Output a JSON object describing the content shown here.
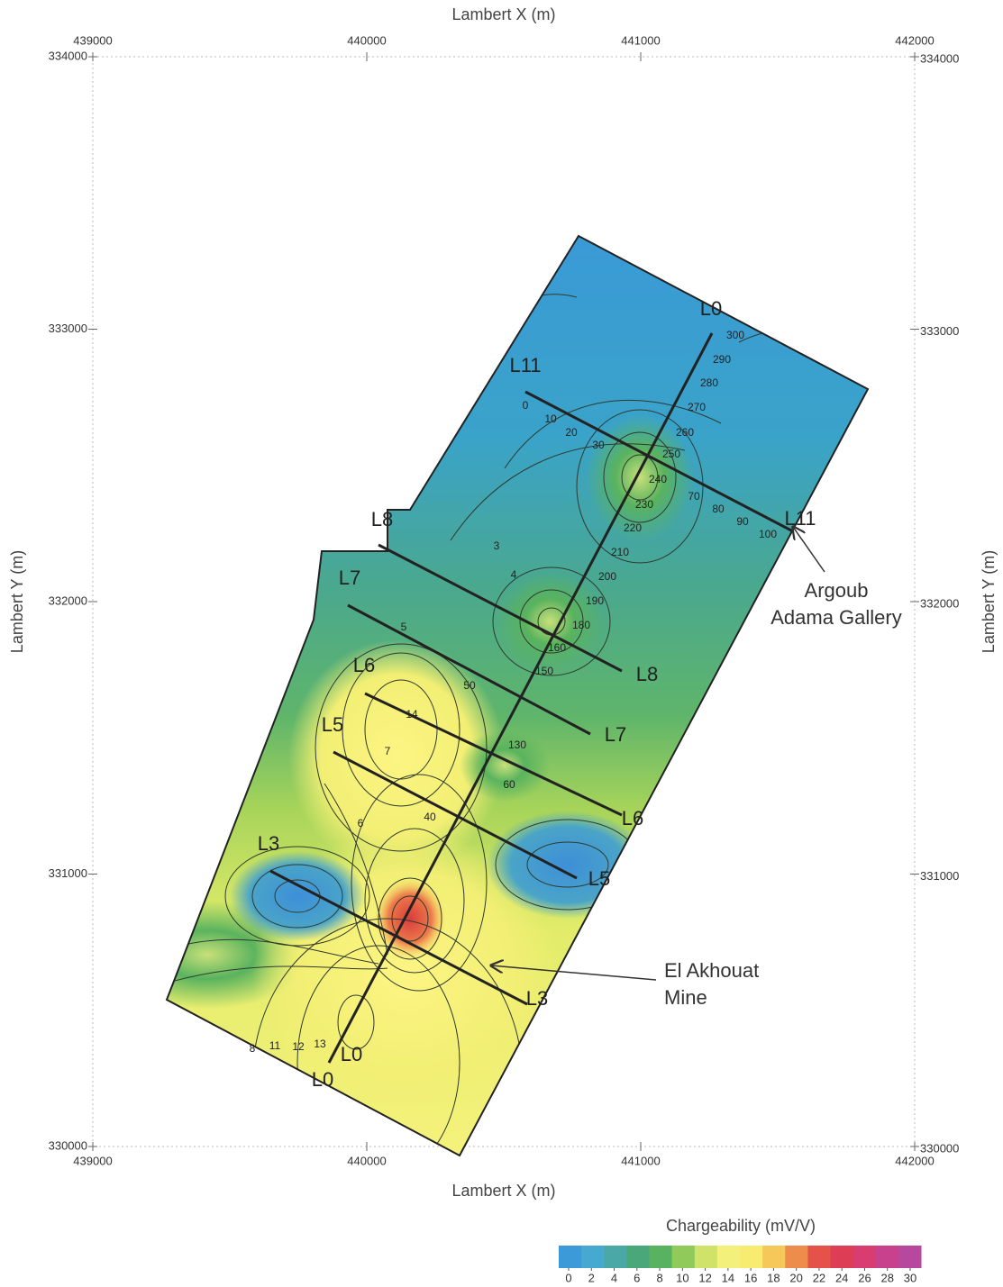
{
  "map": {
    "x_axis_label": "Lambert X (m)",
    "y_axis_label": "Lambert Y (m)",
    "xlim": [
      439000,
      442000
    ],
    "xticks": [
      439000,
      440000,
      441000,
      442000
    ],
    "ylim": [
      330000,
      334000
    ],
    "yticks": [
      330000,
      331000,
      332000,
      333000,
      334000
    ],
    "profiles": [
      "L0",
      "L11",
      "L8",
      "L7",
      "L6",
      "L5",
      "L3"
    ],
    "annotations": [
      {
        "lines": [
          "Argoub",
          "Adama Gallery"
        ]
      },
      {
        "lines": [
          "El Akhouat",
          "Mine"
        ]
      }
    ],
    "contour_labels": [
      300,
      290,
      280,
      270,
      260,
      250,
      240,
      230,
      220,
      210,
      200,
      190,
      180,
      160,
      150,
      130,
      100,
      90,
      80,
      70,
      60,
      50,
      40,
      30,
      20,
      10,
      0,
      3,
      4,
      5,
      6,
      7,
      8,
      11,
      12,
      13,
      14
    ]
  },
  "colorbar": {
    "title": "Chargeability (mV/V)",
    "ticks": [
      0,
      2,
      4,
      6,
      8,
      10,
      12,
      14,
      16,
      18,
      20,
      22,
      24,
      26,
      28,
      30
    ],
    "colors": [
      "#3d9ad8",
      "#46a9cf",
      "#4aa9a6",
      "#4aa77a",
      "#59b25f",
      "#8fca5a",
      "#cfe36a",
      "#f3f07c",
      "#f7eb70",
      "#f6c85a",
      "#ee8c4c",
      "#e4524a",
      "#dd3d55",
      "#d83c70",
      "#c8418c",
      "#b8479e"
    ]
  }
}
